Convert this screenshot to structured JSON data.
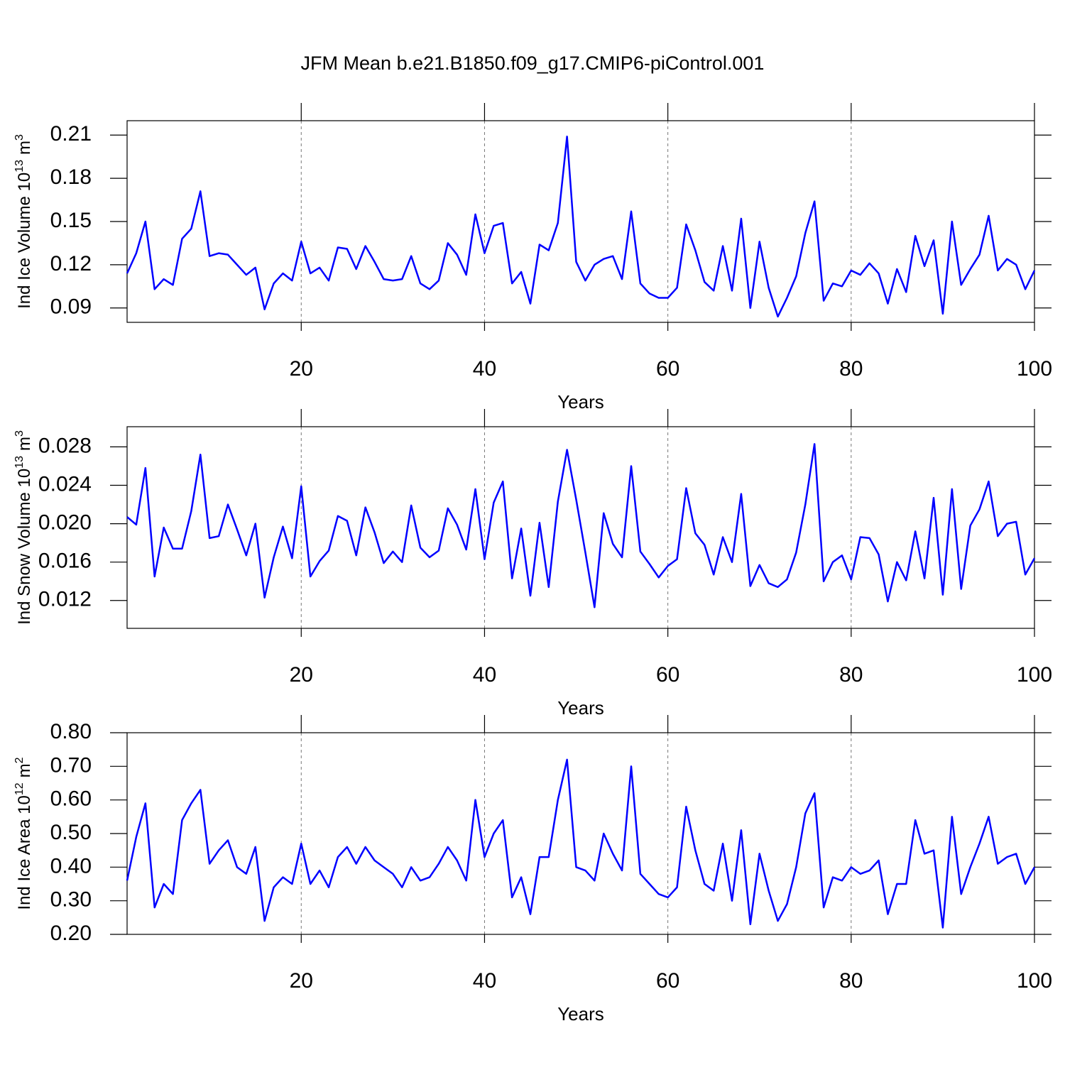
{
  "chart_data": [
    {
      "type": "line",
      "title": "JFM Mean b.e21.B1850.f09_g17.CMIP6-piControl.001",
      "ylabel": {
        "text": "Ind Ice Volume 10",
        "exp": "13",
        "unit": "m",
        "unit_exp": "3"
      },
      "xlabel": "Years",
      "color": "#0000ff",
      "grid": "x",
      "xlim": [
        1,
        100
      ],
      "xticks": [
        20,
        40,
        60,
        80,
        100
      ],
      "ylim": [
        0.08,
        0.22
      ],
      "yticks": [
        0.09,
        0.12,
        0.15,
        0.18,
        0.21
      ],
      "x": [
        1,
        2,
        3,
        4,
        5,
        6,
        7,
        8,
        9,
        10,
        11,
        12,
        13,
        14,
        15,
        16,
        17,
        18,
        19,
        20,
        21,
        22,
        23,
        24,
        25,
        26,
        27,
        28,
        29,
        30,
        31,
        32,
        33,
        34,
        35,
        36,
        37,
        38,
        39,
        40,
        41,
        42,
        43,
        44,
        45,
        46,
        47,
        48,
        49,
        50,
        51,
        52,
        53,
        54,
        55,
        56,
        57,
        58,
        59,
        60,
        61,
        62,
        63,
        64,
        65,
        66,
        67,
        68,
        69,
        70,
        71,
        72,
        73,
        74,
        75,
        76,
        77,
        78,
        79,
        80,
        81,
        82,
        83,
        84,
        85,
        86,
        87,
        88,
        89,
        90,
        91,
        92,
        93,
        94,
        95,
        96,
        97,
        98,
        99,
        100
      ],
      "values": [
        0.114,
        0.128,
        0.15,
        0.103,
        0.11,
        0.106,
        0.138,
        0.145,
        0.171,
        0.126,
        0.128,
        0.127,
        0.12,
        0.113,
        0.118,
        0.089,
        0.107,
        0.114,
        0.109,
        0.136,
        0.114,
        0.118,
        0.109,
        0.132,
        0.131,
        0.117,
        0.133,
        0.122,
        0.11,
        0.109,
        0.11,
        0.126,
        0.107,
        0.103,
        0.109,
        0.135,
        0.127,
        0.113,
        0.155,
        0.128,
        0.147,
        0.149,
        0.107,
        0.115,
        0.093,
        0.134,
        0.13,
        0.149,
        0.209,
        0.122,
        0.109,
        0.12,
        0.124,
        0.126,
        0.11,
        0.157,
        0.107,
        0.1,
        0.097,
        0.097,
        0.104,
        0.148,
        0.13,
        0.108,
        0.102,
        0.133,
        0.102,
        0.152,
        0.09,
        0.136,
        0.104,
        0.084,
        0.097,
        0.112,
        0.142,
        0.164,
        0.095,
        0.107,
        0.105,
        0.116,
        0.113,
        0.121,
        0.114,
        0.093,
        0.117,
        0.101,
        0.14,
        0.119,
        0.137,
        0.086,
        0.15,
        0.106,
        0.117,
        0.127,
        0.154,
        0.116,
        0.124,
        0.12,
        0.103,
        0.116
      ]
    },
    {
      "type": "line",
      "ylabel": {
        "text": "Ind Snow Volume 10",
        "exp": "13",
        "unit": "m",
        "unit_exp": "3"
      },
      "xlabel": "Years",
      "color": "#0000ff",
      "grid": "x",
      "xlim": [
        1,
        100
      ],
      "xticks": [
        20,
        40,
        60,
        80,
        100
      ],
      "ylim": [
        0.0091,
        0.0301
      ],
      "yticks": [
        0.012,
        0.016,
        {
          "value": 0.02,
          "label": "0.020"
        },
        0.024,
        0.028
      ],
      "x": [
        1,
        2,
        3,
        4,
        5,
        6,
        7,
        8,
        9,
        10,
        11,
        12,
        13,
        14,
        15,
        16,
        17,
        18,
        19,
        20,
        21,
        22,
        23,
        24,
        25,
        26,
        27,
        28,
        29,
        30,
        31,
        32,
        33,
        34,
        35,
        36,
        37,
        38,
        39,
        40,
        41,
        42,
        43,
        44,
        45,
        46,
        47,
        48,
        49,
        50,
        51,
        52,
        53,
        54,
        55,
        56,
        57,
        58,
        59,
        60,
        61,
        62,
        63,
        64,
        65,
        66,
        67,
        68,
        69,
        70,
        71,
        72,
        73,
        74,
        75,
        76,
        77,
        78,
        79,
        80,
        81,
        82,
        83,
        84,
        85,
        86,
        87,
        88,
        89,
        90,
        91,
        92,
        93,
        94,
        95,
        96,
        97,
        98,
        99,
        100
      ],
      "values": [
        0.0207,
        0.0199,
        0.0258,
        0.0145,
        0.0196,
        0.0174,
        0.0174,
        0.0213,
        0.0272,
        0.0185,
        0.0187,
        0.022,
        0.0194,
        0.0167,
        0.02,
        0.0123,
        0.0165,
        0.0197,
        0.0164,
        0.0239,
        0.0145,
        0.0161,
        0.0172,
        0.0208,
        0.0203,
        0.0167,
        0.0217,
        0.0191,
        0.0159,
        0.0171,
        0.016,
        0.0219,
        0.0175,
        0.0165,
        0.0172,
        0.0216,
        0.0199,
        0.0173,
        0.0236,
        0.0163,
        0.0222,
        0.0244,
        0.0143,
        0.0195,
        0.0125,
        0.0201,
        0.0134,
        0.0223,
        0.0277,
        0.0225,
        0.017,
        0.0113,
        0.0211,
        0.0179,
        0.0165,
        0.026,
        0.0171,
        0.0158,
        0.0144,
        0.0156,
        0.0163,
        0.0237,
        0.019,
        0.0178,
        0.0147,
        0.0186,
        0.016,
        0.0231,
        0.0135,
        0.0157,
        0.0138,
        0.0134,
        0.0142,
        0.017,
        0.022,
        0.0283,
        0.014,
        0.016,
        0.0167,
        0.0142,
        0.0186,
        0.0185,
        0.0168,
        0.0119,
        0.016,
        0.0141,
        0.0192,
        0.0143,
        0.0227,
        0.0126,
        0.0236,
        0.0132,
        0.0198,
        0.0215,
        0.0244,
        0.0187,
        0.02,
        0.0202,
        0.0147,
        0.0164
      ]
    },
    {
      "type": "line",
      "ylabel": {
        "text": "Ind Ice Area 10",
        "exp": "12",
        "unit": "m",
        "unit_exp": "2"
      },
      "xlabel": "Years",
      "color": "#0000ff",
      "grid": "x",
      "xlim": [
        1,
        100
      ],
      "xticks": [
        20,
        40,
        60,
        80,
        100
      ],
      "ylim": [
        0.2,
        0.8
      ],
      "yticks": [
        {
          "value": 0.2,
          "label": "0.20"
        },
        {
          "value": 0.3,
          "label": "0.30"
        },
        {
          "value": 0.4,
          "label": "0.40"
        },
        {
          "value": 0.5,
          "label": "0.50"
        },
        {
          "value": 0.6,
          "label": "0.60"
        },
        {
          "value": 0.7,
          "label": "0.70"
        },
        {
          "value": 0.8,
          "label": "0.80"
        }
      ],
      "x": [
        1,
        2,
        3,
        4,
        5,
        6,
        7,
        8,
        9,
        10,
        11,
        12,
        13,
        14,
        15,
        16,
        17,
        18,
        19,
        20,
        21,
        22,
        23,
        24,
        25,
        26,
        27,
        28,
        29,
        30,
        31,
        32,
        33,
        34,
        35,
        36,
        37,
        38,
        39,
        40,
        41,
        42,
        43,
        44,
        45,
        46,
        47,
        48,
        49,
        50,
        51,
        52,
        53,
        54,
        55,
        56,
        57,
        58,
        59,
        60,
        61,
        62,
        63,
        64,
        65,
        66,
        67,
        68,
        69,
        70,
        71,
        72,
        73,
        74,
        75,
        76,
        77,
        78,
        79,
        80,
        81,
        82,
        83,
        84,
        85,
        86,
        87,
        88,
        89,
        90,
        91,
        92,
        93,
        94,
        95,
        96,
        97,
        98,
        99,
        100
      ],
      "values": [
        0.36,
        0.49,
        0.59,
        0.28,
        0.35,
        0.32,
        0.54,
        0.59,
        0.63,
        0.41,
        0.45,
        0.48,
        0.4,
        0.38,
        0.46,
        0.24,
        0.34,
        0.37,
        0.35,
        0.47,
        0.35,
        0.39,
        0.34,
        0.43,
        0.46,
        0.41,
        0.46,
        0.42,
        0.4,
        0.38,
        0.34,
        0.4,
        0.36,
        0.37,
        0.41,
        0.46,
        0.42,
        0.36,
        0.6,
        0.43,
        0.5,
        0.54,
        0.31,
        0.37,
        0.26,
        0.43,
        0.43,
        0.6,
        0.72,
        0.4,
        0.39,
        0.36,
        0.5,
        0.44,
        0.39,
        0.7,
        0.38,
        0.35,
        0.32,
        0.31,
        0.34,
        0.58,
        0.45,
        0.35,
        0.33,
        0.47,
        0.3,
        0.51,
        0.23,
        0.44,
        0.33,
        0.24,
        0.29,
        0.4,
        0.56,
        0.62,
        0.28,
        0.37,
        0.36,
        0.4,
        0.38,
        0.39,
        0.42,
        0.26,
        0.35,
        0.35,
        0.54,
        0.44,
        0.45,
        0.22,
        0.55,
        0.32,
        0.4,
        0.47,
        0.55,
        0.41,
        0.43,
        0.44,
        0.35,
        0.4
      ]
    }
  ]
}
